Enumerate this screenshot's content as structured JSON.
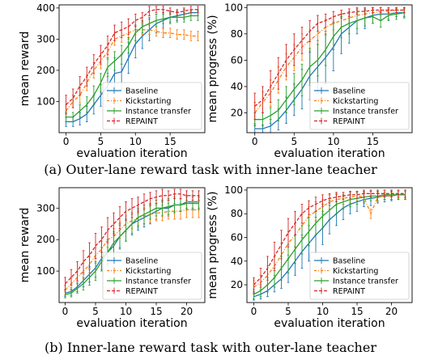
{
  "colors": {
    "Baseline": "#1f77b4",
    "Kickstarting": "#ff7f0e",
    "Instance transfer": "#2ca02c",
    "REPAINT": "#d62728"
  },
  "captions": {
    "a": "(a) Outer-lane reward task with inner-lane teacher",
    "b": "(b) Inner-lane reward task with outer-lane teacher"
  },
  "chart_data": [
    {
      "id": "a-reward",
      "type": "line",
      "xlabel": "evaluation iteration",
      "ylabel": "mean reward",
      "xlim": [
        -1,
        20
      ],
      "ylim": [
        0,
        410
      ],
      "xticks": [
        0,
        5,
        10,
        15
      ],
      "yticks": [
        100,
        200,
        300,
        400
      ],
      "legend_position": "lower-right",
      "x": [
        0,
        1,
        2,
        3,
        4,
        5,
        6,
        7,
        8,
        9,
        10,
        11,
        12,
        13,
        14,
        15,
        16,
        17,
        18,
        19
      ],
      "series": [
        {
          "name": "Baseline",
          "style": "solid",
          "values": [
            35,
            35,
            45,
            60,
            90,
            120,
            150,
            190,
            195,
            240,
            285,
            310,
            330,
            350,
            360,
            370,
            375,
            380,
            385,
            385
          ],
          "err": [
            15,
            15,
            20,
            25,
            30,
            35,
            40,
            50,
            55,
            50,
            45,
            40,
            35,
            30,
            25,
            20,
            15,
            15,
            10,
            10
          ]
        },
        {
          "name": "Kickstarting",
          "style": "dashdot",
          "values": [
            70,
            100,
            120,
            160,
            200,
            230,
            260,
            300,
            310,
            320,
            330,
            330,
            330,
            325,
            320,
            320,
            315,
            315,
            310,
            310
          ],
          "err": [
            20,
            20,
            25,
            25,
            25,
            25,
            25,
            20,
            20,
            20,
            15,
            15,
            15,
            15,
            15,
            15,
            15,
            15,
            15,
            15
          ]
        },
        {
          "name": "Instance transfer",
          "style": "solid",
          "values": [
            50,
            50,
            70,
            90,
            120,
            160,
            210,
            230,
            250,
            280,
            320,
            340,
            350,
            360,
            365,
            370,
            370,
            370,
            375,
            375
          ],
          "err": [
            15,
            15,
            20,
            25,
            30,
            30,
            30,
            30,
            30,
            25,
            25,
            20,
            20,
            20,
            15,
            15,
            15,
            15,
            15,
            15
          ]
        },
        {
          "name": "REPAINT",
          "style": "dashed",
          "values": [
            90,
            110,
            150,
            180,
            220,
            250,
            280,
            320,
            330,
            340,
            360,
            370,
            390,
            395,
            395,
            390,
            385,
            390,
            395,
            395
          ],
          "err": [
            30,
            30,
            30,
            30,
            30,
            30,
            30,
            25,
            25,
            25,
            20,
            15,
            15,
            10,
            10,
            10,
            10,
            10,
            10,
            10
          ]
        }
      ]
    },
    {
      "id": "a-progress",
      "type": "line",
      "xlabel": "evaluation iteration",
      "ylabel": "mean progress (%)",
      "xlim": [
        -1,
        20
      ],
      "ylim": [
        5,
        102
      ],
      "xticks": [
        0,
        5,
        10,
        15
      ],
      "yticks": [
        20,
        40,
        60,
        80,
        100
      ],
      "legend_position": "lower-right",
      "x": [
        0,
        1,
        2,
        3,
        4,
        5,
        6,
        7,
        8,
        9,
        10,
        11,
        12,
        13,
        14,
        15,
        16,
        17,
        18,
        19
      ],
      "series": [
        {
          "name": "Baseline",
          "style": "solid",
          "values": [
            8,
            8,
            10,
            15,
            22,
            30,
            38,
            48,
            55,
            62,
            70,
            80,
            85,
            90,
            92,
            94,
            95,
            95,
            96,
            96
          ],
          "err": [
            3,
            3,
            5,
            8,
            10,
            12,
            15,
            18,
            20,
            20,
            18,
            15,
            12,
            10,
            8,
            6,
            5,
            4,
            3,
            3
          ]
        },
        {
          "name": "Kickstarting",
          "style": "dashdot",
          "values": [
            20,
            28,
            35,
            45,
            55,
            62,
            70,
            75,
            80,
            85,
            88,
            90,
            92,
            94,
            95,
            96,
            97,
            97,
            98,
            98
          ],
          "err": [
            8,
            8,
            10,
            10,
            10,
            10,
            10,
            8,
            8,
            6,
            5,
            5,
            4,
            4,
            3,
            3,
            3,
            2,
            2,
            2
          ]
        },
        {
          "name": "Instance transfer",
          "style": "solid",
          "values": [
            15,
            15,
            18,
            22,
            30,
            38,
            45,
            55,
            60,
            68,
            78,
            85,
            88,
            90,
            92,
            93,
            90,
            94,
            95,
            96
          ],
          "err": [
            5,
            5,
            6,
            8,
            10,
            12,
            12,
            14,
            12,
            12,
            10,
            8,
            8,
            6,
            6,
            5,
            5,
            4,
            4,
            4
          ]
        },
        {
          "name": "REPAINT",
          "style": "dashed",
          "values": [
            25,
            30,
            40,
            50,
            60,
            68,
            75,
            82,
            88,
            90,
            93,
            95,
            96,
            97,
            97,
            98,
            98,
            98,
            98,
            98
          ],
          "err": [
            10,
            10,
            12,
            12,
            12,
            12,
            10,
            8,
            6,
            5,
            4,
            3,
            3,
            2,
            2,
            2,
            2,
            2,
            2,
            2
          ]
        }
      ]
    },
    {
      "id": "b-reward",
      "type": "line",
      "xlabel": "evaluation iteration",
      "ylabel": "mean reward",
      "xlim": [
        -1,
        23
      ],
      "ylim": [
        0,
        365
      ],
      "xticks": [
        0,
        5,
        10,
        15,
        20
      ],
      "yticks": [
        100,
        200,
        300
      ],
      "legend_position": "lower-right",
      "x": [
        0,
        1,
        2,
        3,
        4,
        5,
        6,
        7,
        8,
        9,
        10,
        11,
        12,
        13,
        14,
        15,
        16,
        17,
        18,
        19,
        20,
        21,
        22
      ],
      "series": [
        {
          "name": "Baseline",
          "style": "solid",
          "values": [
            30,
            35,
            50,
            70,
            90,
            110,
            140,
            160,
            180,
            210,
            230,
            250,
            260,
            270,
            280,
            290,
            300,
            300,
            310,
            310,
            320,
            320,
            320
          ],
          "err": [
            10,
            12,
            15,
            20,
            25,
            30,
            35,
            40,
            40,
            40,
            35,
            35,
            30,
            30,
            30,
            25,
            25,
            25,
            20,
            20,
            20,
            20,
            20
          ]
        },
        {
          "name": "Kickstarting",
          "style": "dashdot",
          "values": [
            40,
            60,
            80,
            100,
            120,
            150,
            170,
            200,
            210,
            230,
            250,
            260,
            270,
            275,
            280,
            285,
            285,
            290,
            290,
            290,
            295,
            295,
            295
          ],
          "err": [
            15,
            20,
            20,
            25,
            25,
            25,
            25,
            25,
            25,
            25,
            25,
            25,
            25,
            25,
            25,
            25,
            25,
            25,
            25,
            25,
            25,
            25,
            25
          ]
        },
        {
          "name": "Instance transfer",
          "style": "solid",
          "values": [
            25,
            30,
            45,
            60,
            80,
            100,
            130,
            160,
            190,
            210,
            230,
            250,
            270,
            280,
            290,
            300,
            300,
            305,
            310,
            310,
            315,
            315,
            315
          ],
          "err": [
            10,
            12,
            15,
            20,
            25,
            30,
            30,
            35,
            35,
            35,
            35,
            30,
            30,
            30,
            25,
            25,
            25,
            25,
            25,
            20,
            20,
            20,
            20
          ]
        },
        {
          "name": "REPAINT",
          "style": "dashed",
          "values": [
            60,
            80,
            100,
            130,
            150,
            180,
            200,
            230,
            250,
            270,
            290,
            300,
            310,
            320,
            330,
            335,
            340,
            340,
            345,
            345,
            340,
            340,
            340
          ],
          "err": [
            20,
            25,
            30,
            35,
            40,
            40,
            40,
            40,
            35,
            35,
            30,
            30,
            25,
            25,
            20,
            20,
            20,
            15,
            15,
            15,
            15,
            15,
            15
          ]
        }
      ]
    },
    {
      "id": "b-progress",
      "type": "line",
      "xlabel": "evaluation iteration",
      "ylabel": "mean progress (%)",
      "xlim": [
        -1,
        23
      ],
      "ylim": [
        5,
        102
      ],
      "xticks": [
        0,
        5,
        10,
        15,
        20
      ],
      "yticks": [
        20,
        40,
        60,
        80,
        100
      ],
      "legend_position": "lower-right",
      "x": [
        0,
        1,
        2,
        3,
        4,
        5,
        6,
        7,
        8,
        9,
        10,
        11,
        12,
        13,
        14,
        15,
        16,
        17,
        18,
        19,
        20,
        21,
        22
      ],
      "series": [
        {
          "name": "Baseline",
          "style": "solid",
          "values": [
            10,
            12,
            15,
            20,
            25,
            32,
            40,
            48,
            55,
            62,
            68,
            75,
            80,
            85,
            88,
            90,
            92,
            93,
            94,
            95,
            95,
            96,
            96
          ],
          "err": [
            3,
            4,
            5,
            6,
            8,
            10,
            12,
            14,
            15,
            15,
            14,
            12,
            10,
            10,
            8,
            8,
            6,
            6,
            5,
            5,
            4,
            4,
            4
          ]
        },
        {
          "name": "Kickstarting",
          "style": "dashdot",
          "values": [
            18,
            22,
            28,
            36,
            45,
            55,
            62,
            70,
            78,
            82,
            86,
            90,
            92,
            93,
            94,
            95,
            94,
            80,
            94,
            95,
            95,
            96,
            96
          ],
          "err": [
            6,
            6,
            8,
            8,
            10,
            10,
            10,
            10,
            8,
            8,
            6,
            6,
            5,
            5,
            5,
            4,
            4,
            4,
            4,
            3,
            3,
            3,
            3
          ]
        },
        {
          "name": "Instance transfer",
          "style": "solid",
          "values": [
            12,
            15,
            20,
            26,
            34,
            42,
            50,
            58,
            65,
            72,
            78,
            83,
            88,
            90,
            92,
            93,
            94,
            95,
            95,
            96,
            96,
            96,
            96
          ],
          "err": [
            4,
            5,
            6,
            8,
            10,
            12,
            12,
            12,
            12,
            10,
            10,
            8,
            8,
            6,
            6,
            5,
            5,
            4,
            4,
            4,
            4,
            4,
            4
          ]
        },
        {
          "name": "REPAINT",
          "style": "dashed",
          "values": [
            20,
            26,
            34,
            44,
            54,
            64,
            72,
            80,
            85,
            88,
            91,
            93,
            94,
            95,
            96,
            96,
            97,
            97,
            97,
            97,
            97,
            97,
            97
          ],
          "err": [
            6,
            8,
            10,
            12,
            12,
            12,
            10,
            8,
            6,
            6,
            5,
            4,
            4,
            3,
            3,
            3,
            3,
            3,
            3,
            3,
            3,
            3,
            3
          ]
        }
      ]
    }
  ]
}
